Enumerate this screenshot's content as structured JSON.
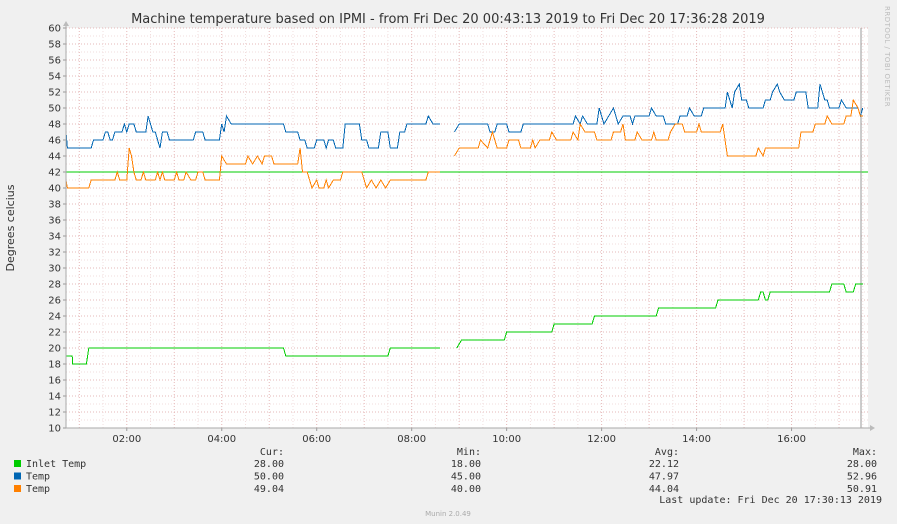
{
  "chart_data": {
    "type": "line",
    "title": "Machine temperature based on IPMI - from Fri Dec 20 00:43:13 2019 to Fri Dec 20 17:36:28 2019",
    "ylabel": "Degrees celcius",
    "side_label": "RRDTOOL / TOBI OETIKER",
    "ylim": [
      10,
      60
    ],
    "y_ticks": [
      "10",
      "12",
      "14",
      "16",
      "18",
      "20",
      "22",
      "24",
      "26",
      "28",
      "30",
      "32",
      "34",
      "36",
      "38",
      "40",
      "42",
      "44",
      "46",
      "48",
      "50",
      "52",
      "54",
      "56",
      "58",
      "60"
    ],
    "x_ticks": [
      "02:00",
      "04:00",
      "06:00",
      "08:00",
      "10:00",
      "12:00",
      "14:00",
      "16:00"
    ],
    "xlim": [
      0.72,
      17.61
    ],
    "warning_line": 42,
    "series": [
      {
        "name": "Inlet Temp",
        "color": "#00cc00",
        "points": [
          [
            0.72,
            19
          ],
          [
            0.85,
            19
          ],
          [
            0.86,
            18
          ],
          [
            1.15,
            18
          ],
          [
            1.2,
            20
          ],
          [
            5.3,
            20
          ],
          [
            5.35,
            19
          ],
          [
            7.5,
            19
          ],
          [
            7.55,
            20
          ],
          [
            8.6,
            20
          ],
          [
            null,
            null
          ],
          [
            8.95,
            20
          ],
          [
            9.05,
            21
          ],
          [
            9.95,
            21
          ],
          [
            10.0,
            22
          ],
          [
            10.95,
            22
          ],
          [
            11.0,
            23
          ],
          [
            11.8,
            23
          ],
          [
            11.85,
            24
          ],
          [
            13.15,
            24
          ],
          [
            13.2,
            25
          ],
          [
            14.4,
            25
          ],
          [
            14.45,
            26
          ],
          [
            15.3,
            26
          ],
          [
            15.35,
            27
          ],
          [
            15.4,
            27
          ],
          [
            15.45,
            26
          ],
          [
            15.5,
            26
          ],
          [
            15.55,
            27
          ],
          [
            16.8,
            27
          ],
          [
            16.85,
            28
          ],
          [
            17.1,
            28
          ],
          [
            17.15,
            27
          ],
          [
            17.3,
            27
          ],
          [
            17.35,
            28
          ],
          [
            17.5,
            28
          ]
        ]
      },
      {
        "name": "Temp",
        "color": "#0066b3",
        "points": [
          [
            0.72,
            47
          ],
          [
            0.75,
            45
          ],
          [
            1.25,
            45
          ],
          [
            1.3,
            46
          ],
          [
            1.5,
            46
          ],
          [
            1.55,
            47
          ],
          [
            1.6,
            47
          ],
          [
            1.65,
            46
          ],
          [
            1.7,
            46
          ],
          [
            1.75,
            47
          ],
          [
            1.9,
            47
          ],
          [
            1.95,
            48
          ],
          [
            2.0,
            47
          ],
          [
            2.05,
            48
          ],
          [
            2.15,
            48
          ],
          [
            2.2,
            47
          ],
          [
            2.4,
            47
          ],
          [
            2.45,
            49
          ],
          [
            2.5,
            48
          ],
          [
            2.55,
            47
          ],
          [
            2.6,
            47
          ],
          [
            2.65,
            46
          ],
          [
            2.7,
            45
          ],
          [
            2.75,
            47
          ],
          [
            2.85,
            47
          ],
          [
            2.9,
            46
          ],
          [
            3.4,
            46
          ],
          [
            3.45,
            47
          ],
          [
            3.6,
            47
          ],
          [
            3.65,
            46
          ],
          [
            3.95,
            46
          ],
          [
            4.0,
            48
          ],
          [
            4.05,
            47
          ],
          [
            4.1,
            49
          ],
          [
            4.2,
            48
          ],
          [
            5.3,
            48
          ],
          [
            5.35,
            47
          ],
          [
            5.6,
            47
          ],
          [
            5.65,
            46
          ],
          [
            5.75,
            46
          ],
          [
            5.8,
            45
          ],
          [
            5.95,
            45
          ],
          [
            6.0,
            46
          ],
          [
            6.15,
            46
          ],
          [
            6.2,
            45
          ],
          [
            6.25,
            46
          ],
          [
            6.35,
            46
          ],
          [
            6.4,
            45
          ],
          [
            6.55,
            45
          ],
          [
            6.6,
            48
          ],
          [
            6.9,
            48
          ],
          [
            6.95,
            46
          ],
          [
            7.05,
            46
          ],
          [
            7.1,
            45
          ],
          [
            7.3,
            45
          ],
          [
            7.35,
            47
          ],
          [
            7.5,
            47
          ],
          [
            7.55,
            45
          ],
          [
            7.7,
            45
          ],
          [
            7.75,
            47
          ],
          [
            7.85,
            47
          ],
          [
            7.9,
            48
          ],
          [
            8.3,
            48
          ],
          [
            8.35,
            49
          ],
          [
            8.45,
            48
          ],
          [
            8.6,
            48
          ],
          [
            null,
            null
          ],
          [
            8.9,
            47
          ],
          [
            9.0,
            48
          ],
          [
            9.6,
            48
          ],
          [
            9.65,
            47
          ],
          [
            9.75,
            47
          ],
          [
            9.8,
            48
          ],
          [
            10.0,
            48
          ],
          [
            10.05,
            47
          ],
          [
            10.3,
            47
          ],
          [
            10.35,
            48
          ],
          [
            10.7,
            48
          ],
          [
            10.75,
            48
          ],
          [
            11.4,
            48
          ],
          [
            11.45,
            49
          ],
          [
            11.55,
            48
          ],
          [
            11.6,
            49
          ],
          [
            11.7,
            48
          ],
          [
            11.9,
            48
          ],
          [
            11.95,
            50
          ],
          [
            12.05,
            48
          ],
          [
            12.15,
            49
          ],
          [
            12.25,
            50
          ],
          [
            12.35,
            48
          ],
          [
            12.45,
            49
          ],
          [
            12.6,
            49
          ],
          [
            12.65,
            48
          ],
          [
            12.7,
            49
          ],
          [
            13.0,
            49
          ],
          [
            13.05,
            50
          ],
          [
            13.15,
            49
          ],
          [
            13.3,
            49
          ],
          [
            13.35,
            48
          ],
          [
            13.6,
            48
          ],
          [
            13.65,
            49
          ],
          [
            13.8,
            49
          ],
          [
            13.85,
            50
          ],
          [
            13.95,
            49
          ],
          [
            14.1,
            49
          ],
          [
            14.15,
            50
          ],
          [
            14.6,
            50
          ],
          [
            14.65,
            52
          ],
          [
            14.75,
            50
          ],
          [
            14.8,
            52
          ],
          [
            14.9,
            53
          ],
          [
            14.95,
            51
          ],
          [
            15.05,
            51
          ],
          [
            15.1,
            50
          ],
          [
            15.4,
            50
          ],
          [
            15.45,
            51
          ],
          [
            15.55,
            51
          ],
          [
            15.6,
            52
          ],
          [
            15.7,
            53
          ],
          [
            15.75,
            52
          ],
          [
            15.85,
            51
          ],
          [
            16.05,
            51
          ],
          [
            16.1,
            52
          ],
          [
            16.3,
            52
          ],
          [
            16.35,
            50
          ],
          [
            16.55,
            50
          ],
          [
            16.6,
            53
          ],
          [
            16.7,
            51
          ],
          [
            16.75,
            51
          ],
          [
            16.8,
            50
          ],
          [
            17.0,
            50
          ],
          [
            17.05,
            51
          ],
          [
            17.15,
            50
          ],
          [
            17.4,
            50
          ],
          [
            17.45,
            49
          ],
          [
            17.5,
            50
          ]
        ]
      },
      {
        "name": "Temp",
        "color": "#ff8000",
        "points": [
          [
            0.72,
            41
          ],
          [
            0.75,
            40
          ],
          [
            1.2,
            40
          ],
          [
            1.25,
            41
          ],
          [
            1.75,
            41
          ],
          [
            1.8,
            42
          ],
          [
            1.85,
            41
          ],
          [
            2.0,
            41
          ],
          [
            2.05,
            45
          ],
          [
            2.1,
            44
          ],
          [
            2.15,
            42
          ],
          [
            2.2,
            41
          ],
          [
            2.3,
            41
          ],
          [
            2.35,
            42
          ],
          [
            2.4,
            41
          ],
          [
            2.6,
            41
          ],
          [
            2.65,
            42
          ],
          [
            2.7,
            41
          ],
          [
            2.75,
            42
          ],
          [
            2.8,
            41
          ],
          [
            3.0,
            41
          ],
          [
            3.05,
            42
          ],
          [
            3.1,
            41
          ],
          [
            3.2,
            41
          ],
          [
            3.25,
            42
          ],
          [
            3.35,
            41
          ],
          [
            3.45,
            41
          ],
          [
            3.5,
            42
          ],
          [
            3.6,
            42
          ],
          [
            3.65,
            41
          ],
          [
            3.95,
            41
          ],
          [
            4.0,
            44
          ],
          [
            4.1,
            43
          ],
          [
            4.5,
            43
          ],
          [
            4.55,
            44
          ],
          [
            4.65,
            43
          ],
          [
            4.75,
            44
          ],
          [
            4.85,
            43
          ],
          [
            4.9,
            44
          ],
          [
            5.05,
            44
          ],
          [
            5.1,
            43
          ],
          [
            5.6,
            43
          ],
          [
            5.65,
            45
          ],
          [
            5.7,
            42
          ],
          [
            5.8,
            42
          ],
          [
            5.85,
            41
          ],
          [
            5.9,
            40
          ],
          [
            6.0,
            41
          ],
          [
            6.05,
            40
          ],
          [
            6.15,
            40
          ],
          [
            6.2,
            41
          ],
          [
            6.25,
            40
          ],
          [
            6.35,
            41
          ],
          [
            6.5,
            41
          ],
          [
            6.55,
            42
          ],
          [
            6.95,
            42
          ],
          [
            7.0,
            41
          ],
          [
            7.05,
            40
          ],
          [
            7.15,
            41
          ],
          [
            7.25,
            40
          ],
          [
            7.35,
            41
          ],
          [
            7.45,
            40
          ],
          [
            7.55,
            41
          ],
          [
            8.0,
            41
          ],
          [
            8.3,
            41
          ],
          [
            8.35,
            42
          ],
          [
            8.6,
            42
          ],
          [
            null,
            null
          ],
          [
            8.9,
            44
          ],
          [
            9.0,
            45
          ],
          [
            9.4,
            45
          ],
          [
            9.45,
            46
          ],
          [
            9.6,
            45
          ],
          [
            9.7,
            47
          ],
          [
            9.8,
            45
          ],
          [
            10.0,
            45
          ],
          [
            10.05,
            46
          ],
          [
            10.25,
            46
          ],
          [
            10.3,
            45
          ],
          [
            10.5,
            45
          ],
          [
            10.55,
            46
          ],
          [
            10.6,
            45
          ],
          [
            10.7,
            46
          ],
          [
            10.9,
            46
          ],
          [
            10.95,
            47
          ],
          [
            11.05,
            46
          ],
          [
            11.35,
            46
          ],
          [
            11.4,
            47
          ],
          [
            11.5,
            46
          ],
          [
            11.55,
            48
          ],
          [
            11.65,
            47
          ],
          [
            11.85,
            47
          ],
          [
            11.9,
            46
          ],
          [
            12.2,
            46
          ],
          [
            12.25,
            47
          ],
          [
            12.4,
            47
          ],
          [
            12.45,
            48
          ],
          [
            12.5,
            46
          ],
          [
            12.7,
            46
          ],
          [
            12.75,
            47
          ],
          [
            12.85,
            46
          ],
          [
            13.05,
            46
          ],
          [
            13.1,
            47
          ],
          [
            13.15,
            46
          ],
          [
            13.4,
            46
          ],
          [
            13.45,
            47
          ],
          [
            13.55,
            48
          ],
          [
            13.7,
            48
          ],
          [
            13.75,
            47
          ],
          [
            14.0,
            47
          ],
          [
            14.05,
            48
          ],
          [
            14.1,
            47
          ],
          [
            14.5,
            47
          ],
          [
            14.55,
            48
          ],
          [
            14.65,
            44
          ],
          [
            14.8,
            44
          ],
          [
            14.95,
            44
          ],
          [
            15.25,
            44
          ],
          [
            15.3,
            45
          ],
          [
            15.4,
            44
          ],
          [
            15.45,
            45
          ],
          [
            16.15,
            45
          ],
          [
            16.2,
            47
          ],
          [
            16.45,
            47
          ],
          [
            16.5,
            48
          ],
          [
            16.7,
            48
          ],
          [
            16.75,
            49
          ],
          [
            16.85,
            48
          ],
          [
            17.1,
            48
          ],
          [
            17.15,
            49
          ],
          [
            17.25,
            49
          ],
          [
            17.3,
            51
          ],
          [
            17.4,
            50
          ],
          [
            17.45,
            49
          ],
          [
            17.5,
            49
          ]
        ]
      }
    ],
    "legend": {
      "headers": [
        "Cur:",
        "Min:",
        "Avg:",
        "Max:"
      ],
      "rows": [
        {
          "name": "Inlet Temp",
          "color": "#00cc00",
          "values": [
            "28.00",
            "18.00",
            "22.12",
            "28.00"
          ]
        },
        {
          "name": "Temp",
          "color": "#0066b3",
          "values": [
            "50.00",
            "45.00",
            "47.97",
            "52.96"
          ]
        },
        {
          "name": "Temp",
          "color": "#ff8000",
          "values": [
            "49.04",
            "40.00",
            "44.04",
            "50.91"
          ]
        }
      ]
    },
    "last_update": "Last update: Fri Dec 20 17:30:13 2019",
    "footer": "Munin 2.0.49"
  }
}
